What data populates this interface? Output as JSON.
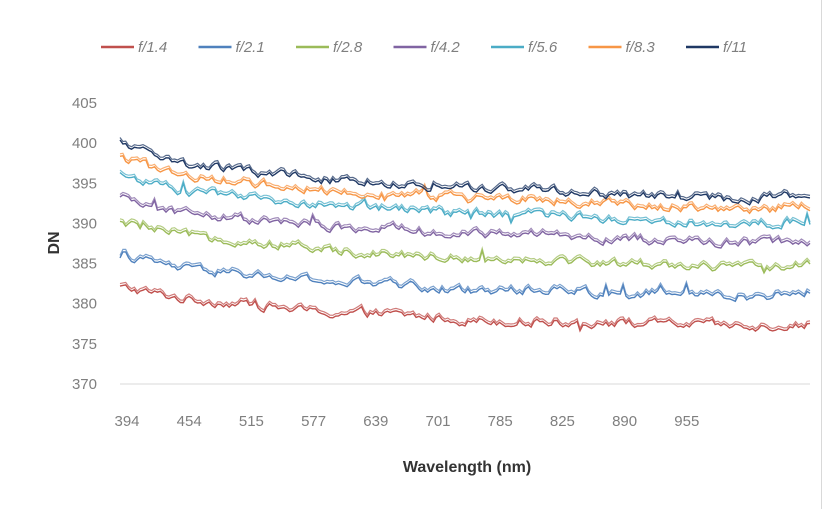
{
  "chart_data": {
    "type": "line",
    "title": "",
    "xlabel": "Wavelength (nm)",
    "ylabel": "DN",
    "ylim": [
      370,
      405
    ],
    "yticks": [
      370,
      375,
      380,
      385,
      390,
      395,
      400,
      405
    ],
    "xticks": [
      "394",
      "454",
      "515",
      "577",
      "639",
      "701",
      "785",
      "825",
      "890",
      "955"
    ],
    "xlim": [
      394,
      1010
    ],
    "grid": false,
    "legend_position": "top",
    "series": [
      {
        "name": "f/1.4",
        "color": "#c0504d",
        "x": [
          394,
          454,
          515,
          577,
          639,
          701,
          785,
          825,
          890,
          955,
          1010
        ],
        "y": [
          382,
          380.5,
          379.8,
          378.8,
          378.6,
          377.9,
          377.7,
          377.6,
          377.4,
          377.1,
          377.4
        ]
      },
      {
        "name": "f/2.1",
        "color": "#4f81bd",
        "x": [
          394,
          454,
          515,
          577,
          639,
          701,
          785,
          825,
          890,
          955,
          1010
        ],
        "y": [
          386,
          384.2,
          383.5,
          382.6,
          382.4,
          381.6,
          381.8,
          381.3,
          381.2,
          380.9,
          381.4
        ]
      },
      {
        "name": "f/2.8",
        "color": "#9bbb59",
        "x": [
          394,
          454,
          515,
          577,
          639,
          701,
          785,
          825,
          890,
          955,
          1010
        ],
        "y": [
          390,
          388.4,
          387.6,
          386.6,
          386.2,
          385.6,
          385.4,
          385,
          384.8,
          384.4,
          384.8
        ]
      },
      {
        "name": "f/4.2",
        "color": "#8064a2",
        "x": [
          394,
          454,
          515,
          577,
          639,
          701,
          785,
          825,
          890,
          955,
          1010
        ],
        "y": [
          393,
          391.2,
          390.3,
          389.5,
          389.3,
          388.6,
          388.5,
          388.1,
          387.8,
          387.5,
          387.8
        ]
      },
      {
        "name": "f/5.6",
        "color": "#4bacc6",
        "x": [
          394,
          454,
          515,
          577,
          639,
          701,
          785,
          825,
          890,
          955,
          1010
        ],
        "y": [
          396,
          393.8,
          393,
          392.2,
          391.8,
          391.2,
          391,
          390.6,
          390.2,
          389.8,
          390.4
        ]
      },
      {
        "name": "f/8.3",
        "color": "#f79646",
        "x": [
          394,
          454,
          515,
          577,
          639,
          701,
          785,
          825,
          890,
          955,
          1010
        ],
        "y": [
          398,
          395.8,
          395,
          394.1,
          393.7,
          393.1,
          392.8,
          392.4,
          392,
          391.6,
          392.2
        ]
      },
      {
        "name": "f/11",
        "color": "#1f3864",
        "x": [
          394,
          454,
          515,
          577,
          639,
          701,
          785,
          825,
          890,
          955,
          1010
        ],
        "y": [
          400,
          397.3,
          396.3,
          395.4,
          395,
          394.3,
          394.1,
          393.6,
          393.2,
          393,
          393.6
        ]
      }
    ]
  }
}
